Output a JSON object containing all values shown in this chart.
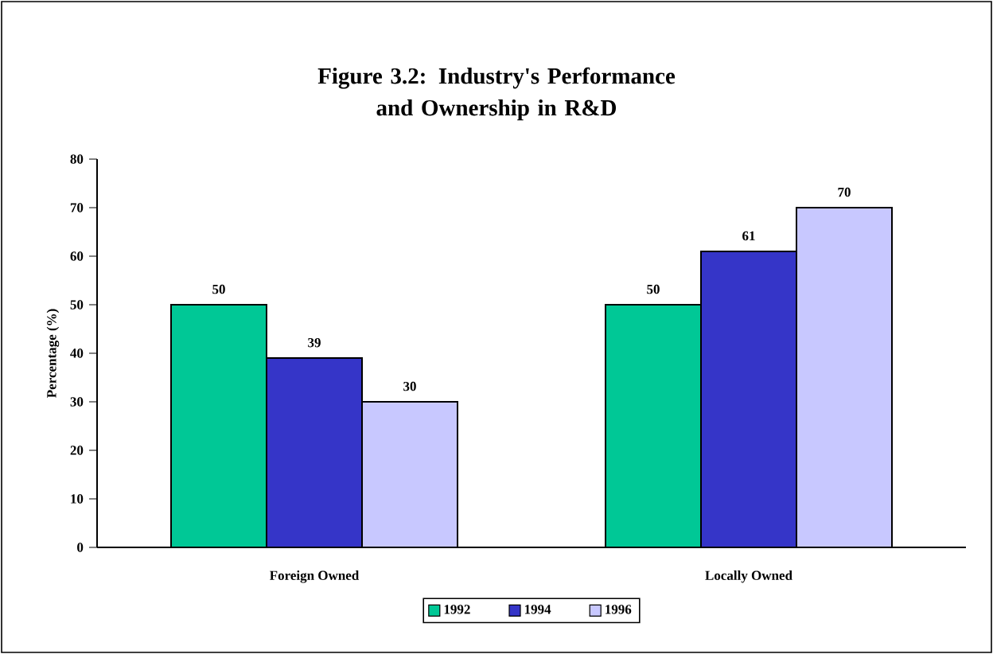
{
  "chart_data": {
    "type": "bar",
    "title": "Figure 3.2: Industry's Performance and Ownership in R&D",
    "ylabel": "Percentage (%)",
    "categories": [
      "Foreign Owned",
      "Locally Owned"
    ],
    "series": [
      {
        "name": "1992",
        "color": "#00c896",
        "values": [
          50,
          50
        ]
      },
      {
        "name": "1994",
        "color": "#3535c8",
        "values": [
          39,
          61
        ]
      },
      {
        "name": "1996",
        "color": "#c8c8ff",
        "values": [
          30,
          70
        ]
      }
    ],
    "ylim": [
      0,
      80
    ],
    "yticks": [
      0,
      10,
      20,
      30,
      40,
      50,
      60,
      70,
      80
    ],
    "data_labels": true,
    "legend": "bottom",
    "grid": false
  }
}
